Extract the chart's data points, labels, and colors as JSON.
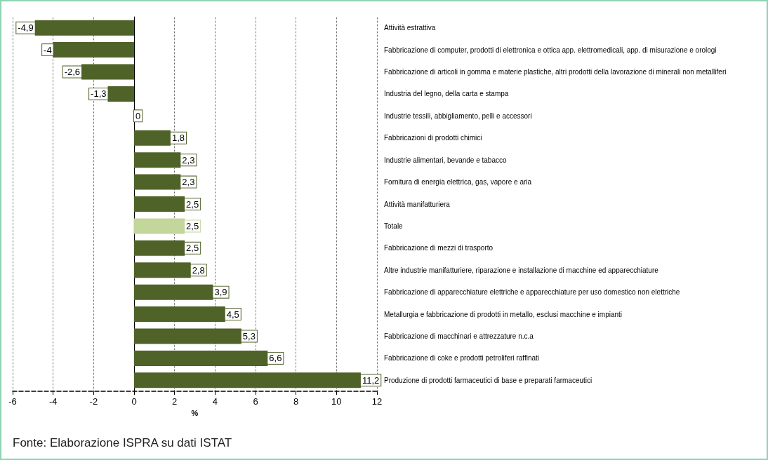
{
  "chart_data": {
    "type": "bar",
    "orientation": "horizontal",
    "xlabel": "%",
    "categories": [
      "Attività estrattiva",
      "Fabbricazione di computer, prodotti di elettronica e ottica app. elettromedicali, app. di misurazione e orologi",
      "Fabbricazione di articoli in gomma e materie plastiche, altri prodotti della lavorazione di minerali non metalliferi",
      "Industria del legno, della carta e stampa",
      "Industrie tessili, abbigliamento, pelli e accessori",
      "Fabbricazioni di prodotti chimici",
      "Industrie alimentari, bevande e tabacco",
      "Fornitura di energia elettrica, gas, vapore e aria",
      "Attività manifatturiera",
      "Totale",
      "Fabbricazione di mezzi di trasporto",
      "Altre industrie manifatturiere, riparazione e installazione di macchine ed apparecchiature",
      "Fabbricazione di apparecchiature elettriche e apparecchiature per uso domestico non elettriche",
      "Metallurgia e fabbricazione di prodotti in metallo, esclusi macchine e impianti",
      "Fabbricazione di macchinari e attrezzature n.c.a",
      "Fabbricazione di coke e prodotti petroliferi raffinati",
      "Produzione di prodotti farmaceutici di base e preparati farmaceutici"
    ],
    "values": [
      -4.9,
      -4,
      -2.6,
      -1.3,
      0,
      1.8,
      2.3,
      2.3,
      2.5,
      2.5,
      2.5,
      2.8,
      3.9,
      4.5,
      5.3,
      6.6,
      11.2
    ],
    "value_labels": [
      "-4,9",
      "-4",
      "-2,6",
      "-1,3",
      "0",
      "1,8",
      "2,3",
      "2,3",
      "2,5",
      "2,5",
      "2,5",
      "2,8",
      "3,9",
      "4,5",
      "5,3",
      "6,6",
      "11,2"
    ],
    "colors": [
      "#4f6228",
      "#4f6228",
      "#4f6228",
      "#4f6228",
      "#4f6228",
      "#4f6228",
      "#4f6228",
      "#4f6228",
      "#4f6228",
      "#c3d69b",
      "#4f6228",
      "#4f6228",
      "#4f6228",
      "#4f6228",
      "#4f6228",
      "#4f6228",
      "#4f6228"
    ],
    "xlim": [
      -6,
      12
    ],
    "xticks": [
      -6,
      -4,
      -2,
      0,
      2,
      4,
      6,
      8,
      10,
      12
    ],
    "grid": "x",
    "annotations": [
      "Fonte: Elaborazione ISPRA su dati ISTAT"
    ]
  }
}
